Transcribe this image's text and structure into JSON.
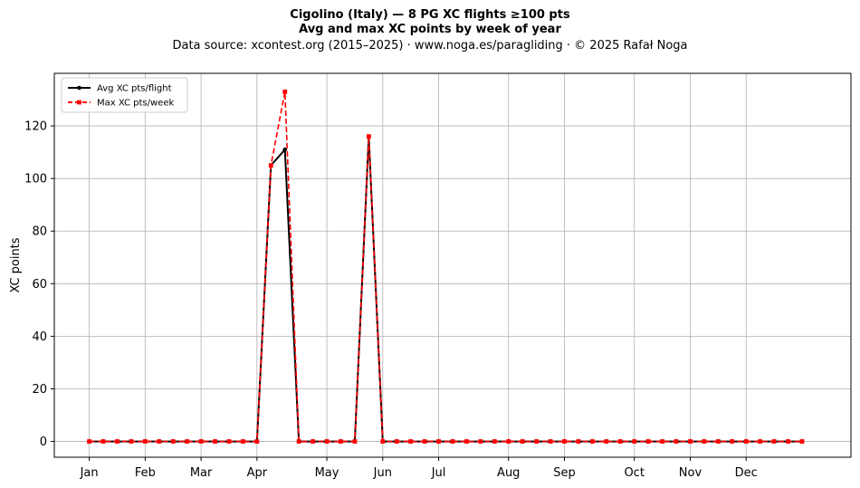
{
  "title_line1": "Cigolino (Italy)  —  8 PG XC flights ≥100 pts",
  "title_line2": "Avg and max XC points by week of year",
  "subtitle": "Data source: xcontest.org (2015–2025)  ·  www.noga.es/paragliding  ·  © 2025 Rafał Noga",
  "chart_data": {
    "type": "line",
    "ylabel": "XC points",
    "xlabel": "",
    "ylim": [
      -6,
      140
    ],
    "yticks": [
      0,
      20,
      40,
      60,
      80,
      100,
      120
    ],
    "xlim": [
      -2.5,
      54.5
    ],
    "x_ticks": [
      {
        "label": "Jan",
        "x": 0
      },
      {
        "label": "Feb",
        "x": 4
      },
      {
        "label": "Mar",
        "x": 8
      },
      {
        "label": "Apr",
        "x": 12
      },
      {
        "label": "May",
        "x": 17
      },
      {
        "label": "Jun",
        "x": 21
      },
      {
        "label": "Jul",
        "x": 25
      },
      {
        "label": "Aug",
        "x": 30
      },
      {
        "label": "Sep",
        "x": 34
      },
      {
        "label": "Oct",
        "x": 39
      },
      {
        "label": "Nov",
        "x": 43
      },
      {
        "label": "Dec",
        "x": 47
      }
    ],
    "grid": true,
    "legend_position": "top-left",
    "x": [
      0,
      1,
      2,
      3,
      4,
      5,
      6,
      7,
      8,
      9,
      10,
      11,
      12,
      13,
      14,
      15,
      16,
      17,
      18,
      19,
      20,
      21,
      22,
      23,
      24,
      25,
      26,
      27,
      28,
      29,
      30,
      31,
      32,
      33,
      34,
      35,
      36,
      37,
      38,
      39,
      40,
      41,
      42,
      43,
      44,
      45,
      46,
      47,
      48,
      49,
      50,
      51
    ],
    "series": [
      {
        "name": "Avg XC pts/flight",
        "color": "#000000",
        "style": "solid",
        "marker": "circle",
        "values": [
          0,
          0,
          0,
          0,
          0,
          0,
          0,
          0,
          0,
          0,
          0,
          0,
          0,
          105,
          111,
          0,
          0,
          0,
          0,
          0,
          116,
          0,
          0,
          0,
          0,
          0,
          0,
          0,
          0,
          0,
          0,
          0,
          0,
          0,
          0,
          0,
          0,
          0,
          0,
          0,
          0,
          0,
          0,
          0,
          0,
          0,
          0,
          0,
          0,
          0,
          0,
          0
        ]
      },
      {
        "name": "Max XC pts/week",
        "color": "#ff0000",
        "style": "dashed",
        "marker": "square",
        "values": [
          0,
          0,
          0,
          0,
          0,
          0,
          0,
          0,
          0,
          0,
          0,
          0,
          0,
          105,
          133,
          0,
          0,
          0,
          0,
          0,
          116,
          0,
          0,
          0,
          0,
          0,
          0,
          0,
          0,
          0,
          0,
          0,
          0,
          0,
          0,
          0,
          0,
          0,
          0,
          0,
          0,
          0,
          0,
          0,
          0,
          0,
          0,
          0,
          0,
          0,
          0,
          0
        ]
      }
    ]
  }
}
